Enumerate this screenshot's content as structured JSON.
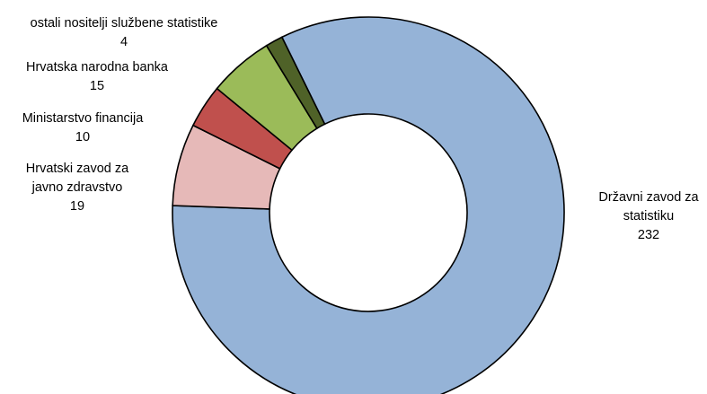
{
  "chart_data": {
    "type": "pie",
    "variant": "donut",
    "title": "",
    "slices": [
      {
        "label_lines": [
          "Državni zavod za",
          "statistiku"
        ],
        "value": 232,
        "value_text": "232",
        "color": "#95B3D7"
      },
      {
        "label_lines": [
          "Hrvatski zavod za",
          "javno zdravstvo"
        ],
        "value": 19,
        "value_text": "19",
        "color": "#E6B9B8"
      },
      {
        "label_lines": [
          "Ministarstvo financija"
        ],
        "value": 10,
        "value_text": "10",
        "color": "#C0504D"
      },
      {
        "label_lines": [
          "Hrvatska narodna banka"
        ],
        "value": 15,
        "value_text": "15",
        "color": "#9BBB59"
      },
      {
        "label_lines": [
          "ostali nositelji službene statistike"
        ],
        "value": 4,
        "value_text": "4",
        "color": "#4F6228"
      }
    ],
    "legend": "none"
  }
}
